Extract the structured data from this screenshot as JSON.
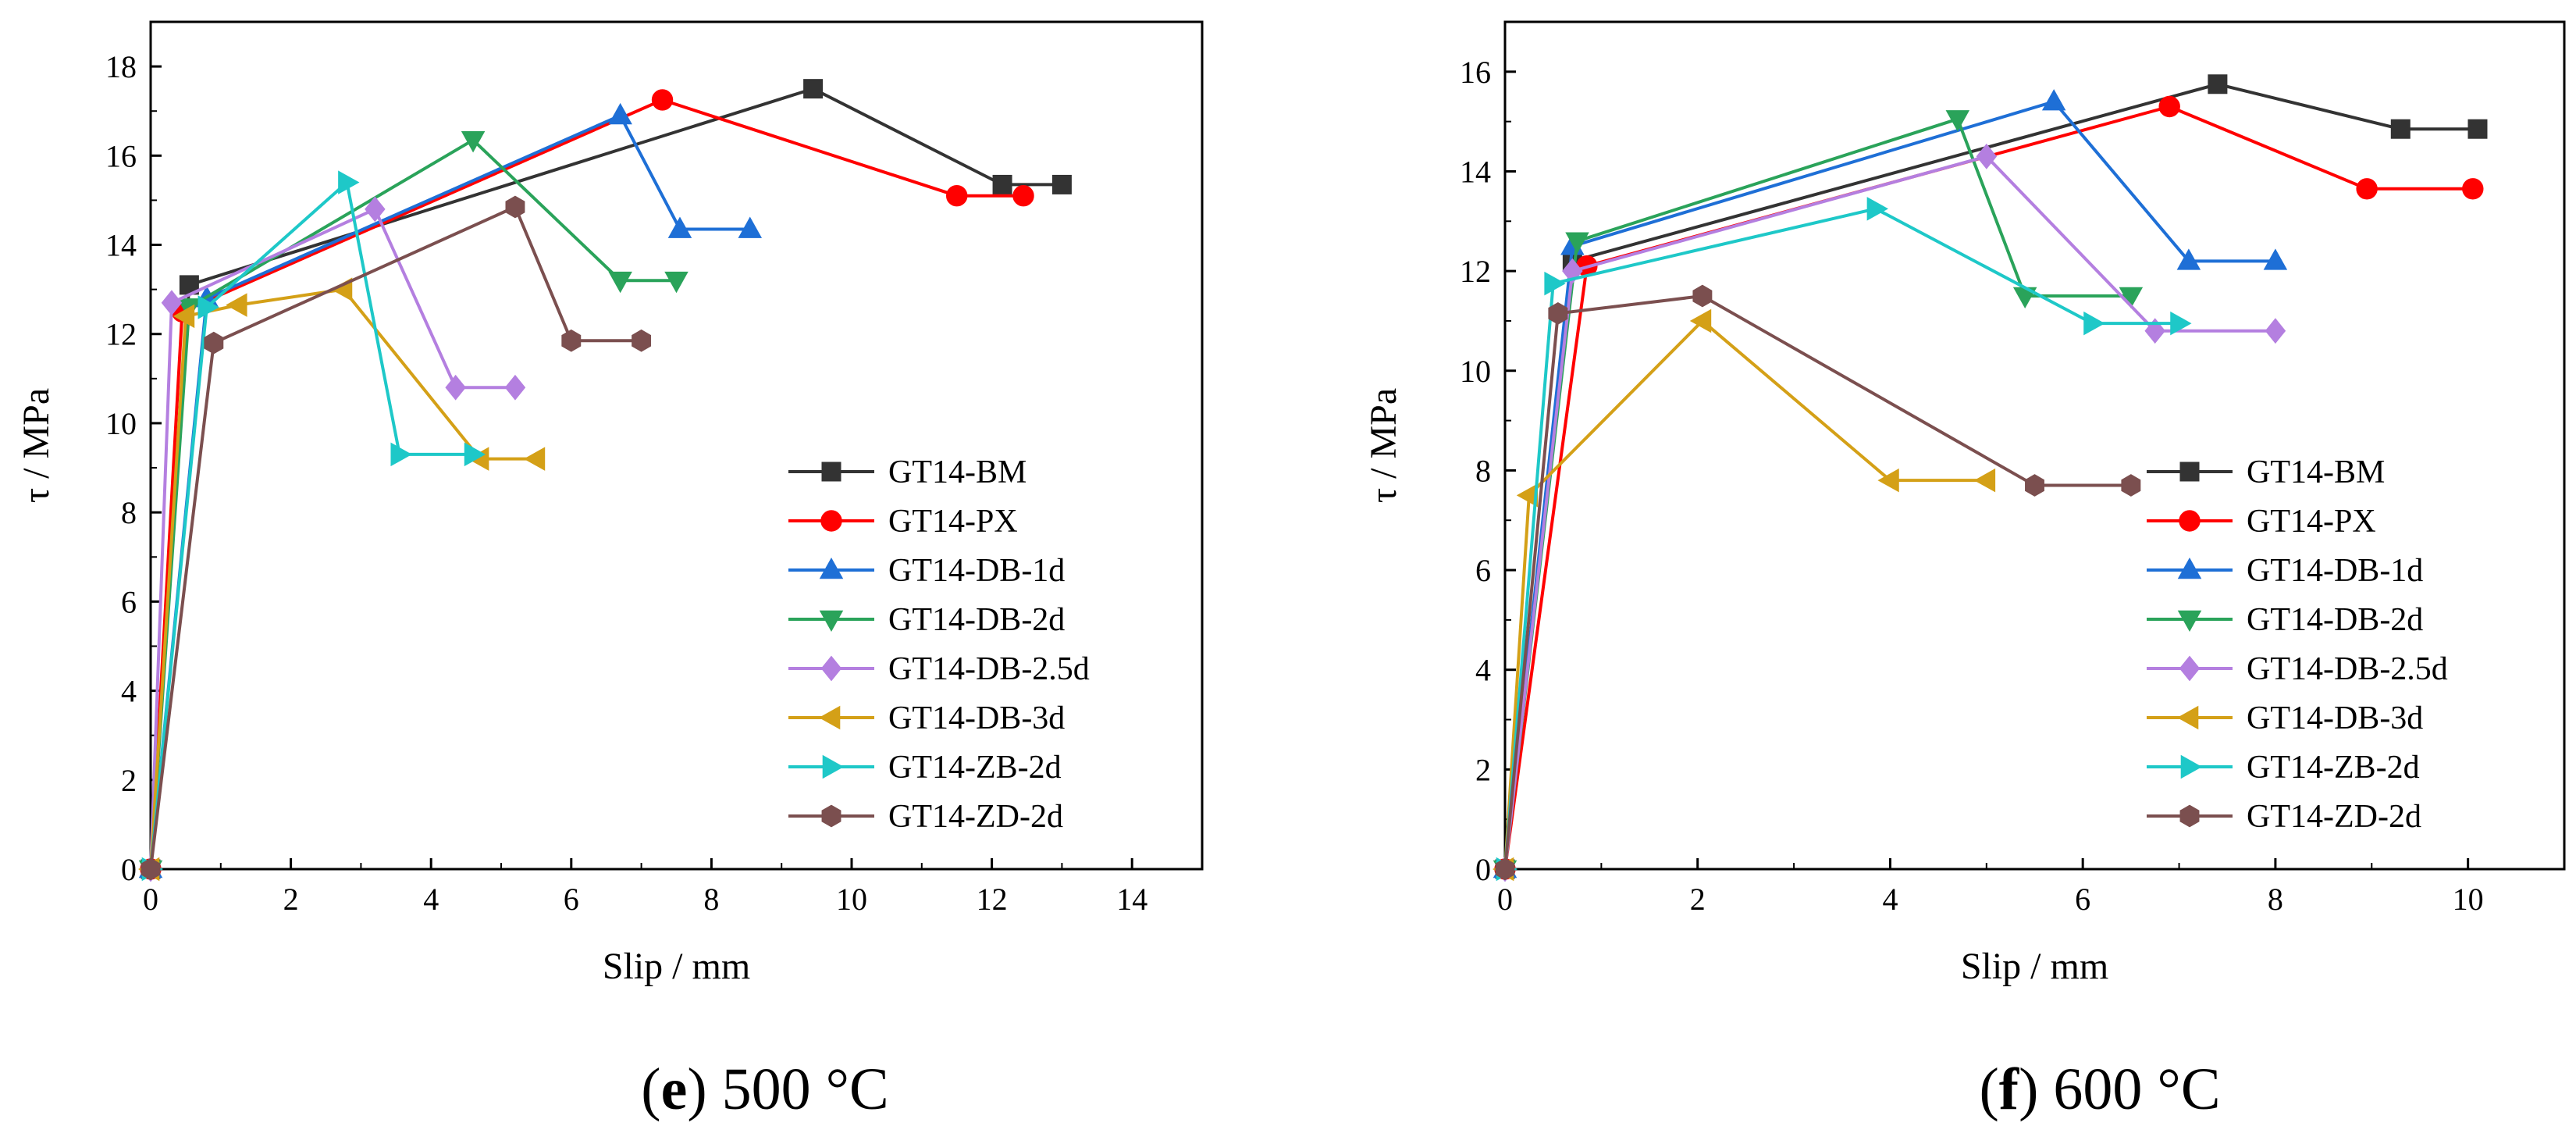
{
  "chart_data": [
    {
      "type": "line",
      "caption_letter": "e",
      "caption_text": " 500 °C",
      "xlabel": "Slip / mm",
      "ylabel": "τ / MPa",
      "xlim": [
        0,
        15
      ],
      "ylim": [
        0,
        19
      ],
      "xticks": [
        0,
        2,
        4,
        6,
        8,
        10,
        12,
        14
      ],
      "yticks": [
        0,
        2,
        4,
        6,
        8,
        10,
        12,
        14,
        16,
        18
      ],
      "legend_position": "bottom-right",
      "series": [
        {
          "name": "GT14-BM",
          "color": "#333333",
          "marker": "square",
          "x": [
            0,
            0.55,
            9.45,
            12.15,
            13.0
          ],
          "y": [
            0,
            13.1,
            17.5,
            15.35,
            15.35
          ]
        },
        {
          "name": "GT14-PX",
          "color": "#ff0000",
          "marker": "circle",
          "x": [
            0,
            0.45,
            7.3,
            11.5,
            12.45
          ],
          "y": [
            0,
            12.5,
            17.25,
            15.1,
            15.1
          ]
        },
        {
          "name": "GT14-DB-1d",
          "color": "#1e6fd6",
          "marker": "triangle-up",
          "x": [
            0,
            0.8,
            6.7,
            7.55,
            8.55
          ],
          "y": [
            0,
            12.8,
            16.9,
            14.35,
            14.35
          ]
        },
        {
          "name": "GT14-DB-2d",
          "color": "#2aa35a",
          "marker": "triangle-down",
          "x": [
            0,
            0.55,
            4.6,
            6.7,
            7.5
          ],
          "y": [
            0,
            12.6,
            16.35,
            13.2,
            13.2
          ]
        },
        {
          "name": "GT14-DB-2.5d",
          "color": "#b47fe0",
          "marker": "diamond",
          "x": [
            0,
            0.3,
            3.2,
            4.35,
            5.2
          ],
          "y": [
            0,
            12.7,
            14.8,
            10.8,
            10.8
          ]
        },
        {
          "name": "GT14-DB-3d",
          "color": "#d4a017",
          "marker": "triangle-left",
          "x": [
            0,
            0.5,
            1.25,
            2.75,
            4.7,
            5.5
          ],
          "y": [
            0,
            12.4,
            12.65,
            13.0,
            9.2,
            9.2
          ]
        },
        {
          "name": "GT14-ZB-2d",
          "color": "#1ec8c8",
          "marker": "triangle-right",
          "x": [
            0,
            0.8,
            2.8,
            3.55,
            4.6
          ],
          "y": [
            0,
            12.6,
            15.4,
            9.3,
            9.3
          ]
        },
        {
          "name": "GT14-ZD-2d",
          "color": "#7b4f4f",
          "marker": "hexagon",
          "x": [
            0,
            0.9,
            5.2,
            6.0,
            7.0
          ],
          "y": [
            0,
            11.8,
            14.85,
            11.85,
            11.85
          ]
        }
      ]
    },
    {
      "type": "line",
      "caption_letter": "f",
      "caption_text": " 600 °C",
      "xlabel": "Slip / mm",
      "ylabel": "τ / MPa",
      "xlim": [
        0,
        11
      ],
      "ylim": [
        0,
        17
      ],
      "xticks": [
        0,
        2,
        4,
        6,
        8,
        10
      ],
      "yticks": [
        0,
        2,
        4,
        6,
        8,
        10,
        12,
        14,
        16
      ],
      "legend_position": "bottom-right",
      "series": [
        {
          "name": "GT14-BM",
          "color": "#333333",
          "marker": "square",
          "x": [
            0,
            0.7,
            7.4,
            9.3,
            10.1
          ],
          "y": [
            0,
            12.2,
            15.75,
            14.85,
            14.85
          ]
        },
        {
          "name": "GT14-PX",
          "color": "#ff0000",
          "marker": "circle",
          "x": [
            0,
            0.85,
            6.9,
            8.95,
            10.05
          ],
          "y": [
            0,
            12.1,
            15.3,
            13.65,
            13.65
          ]
        },
        {
          "name": "GT14-DB-1d",
          "color": "#1e6fd6",
          "marker": "triangle-up",
          "x": [
            0,
            0.7,
            5.7,
            7.1,
            8.0
          ],
          "y": [
            0,
            12.5,
            15.4,
            12.2,
            12.2
          ]
        },
        {
          "name": "GT14-DB-2d",
          "color": "#2aa35a",
          "marker": "triangle-down",
          "x": [
            0,
            0.75,
            4.7,
            5.4,
            6.5
          ],
          "y": [
            0,
            12.6,
            15.05,
            11.5,
            11.5
          ]
        },
        {
          "name": "GT14-DB-2.5d",
          "color": "#b47fe0",
          "marker": "diamond",
          "x": [
            0,
            0.7,
            5.0,
            6.75,
            8.0
          ],
          "y": [
            0,
            12.0,
            14.3,
            10.8,
            10.8
          ]
        },
        {
          "name": "GT14-DB-3d",
          "color": "#d4a017",
          "marker": "triangle-left",
          "x": [
            0,
            0.25,
            2.05,
            4.0,
            5.0
          ],
          "y": [
            0,
            7.5,
            11.0,
            7.8,
            7.8
          ]
        },
        {
          "name": "GT14-ZB-2d",
          "color": "#1ec8c8",
          "marker": "triangle-right",
          "x": [
            0,
            0.5,
            3.85,
            6.1,
            7.0
          ],
          "y": [
            0,
            11.75,
            13.25,
            10.95,
            10.95
          ]
        },
        {
          "name": "GT14-ZD-2d",
          "color": "#7b4f4f",
          "marker": "hexagon",
          "x": [
            0,
            0.55,
            2.05,
            5.5,
            6.5
          ],
          "y": [
            0,
            11.15,
            11.5,
            7.7,
            7.7
          ]
        }
      ]
    }
  ]
}
